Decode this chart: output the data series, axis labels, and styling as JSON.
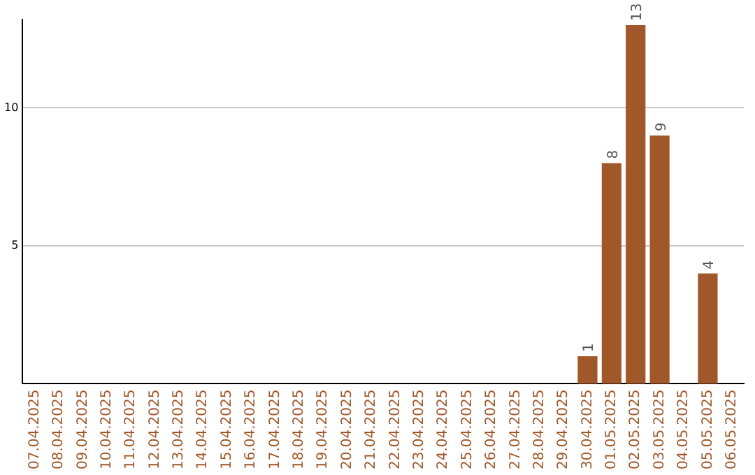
{
  "chart_data": {
    "type": "bar",
    "categories": [
      "07.04.2025",
      "08.04.2025",
      "09.04.2025",
      "10.04.2025",
      "11.04.2025",
      "12.04.2025",
      "13.04.2025",
      "14.04.2025",
      "15.04.2025",
      "16.04.2025",
      "17.04.2025",
      "18.04.2025",
      "19.04.2025",
      "20.04.2025",
      "21.04.2025",
      "22.04.2025",
      "23.04.2025",
      "24.04.2025",
      "25.04.2025",
      "26.04.2025",
      "27.04.2025",
      "28.04.2025",
      "29.04.2025",
      "30.04.2025",
      "01.05.2025",
      "02.05.2025",
      "03.05.2025",
      "04.05.2025",
      "05.05.2025",
      "06.05.2025"
    ],
    "values": [
      null,
      null,
      null,
      null,
      null,
      null,
      null,
      null,
      null,
      null,
      null,
      null,
      null,
      null,
      null,
      null,
      null,
      null,
      null,
      null,
      null,
      null,
      null,
      1,
      8,
      13,
      9,
      null,
      4,
      null
    ],
    "color": "#a0582a",
    "ylim": [
      0,
      13.2
    ],
    "yticks": [
      5,
      10
    ],
    "grid": "y",
    "data_labels": true
  }
}
